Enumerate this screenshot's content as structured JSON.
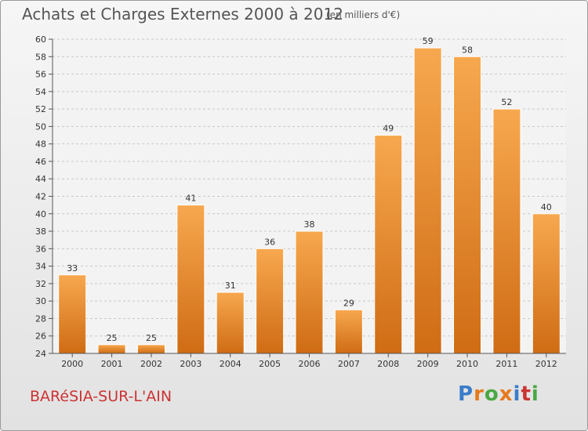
{
  "page": {
    "title": "Achats et Charges Externes 2000 à 2012",
    "unit": "(en milliers d'€)",
    "footer_name": "BARéSIA-SUR-L'AIN",
    "logo_text": "Proxiti",
    "logo_colors": [
      "#3a7dc9",
      "#e67a1e",
      "#4aa843",
      "#e67a1e",
      "#3a7dc9",
      "#cc3333",
      "#4aa843"
    ]
  },
  "chart_data": {
    "type": "bar",
    "title": "Achats et Charges Externes 2000 à 2012",
    "subtitle": "(en milliers d'€)",
    "xlabel": "",
    "ylabel": "",
    "categories": [
      "2000",
      "2001",
      "2002",
      "2003",
      "2004",
      "2005",
      "2006",
      "2007",
      "2008",
      "2009",
      "2010",
      "2011",
      "2012"
    ],
    "values": [
      33,
      25,
      25,
      41,
      31,
      36,
      38,
      29,
      49,
      59,
      58,
      52,
      40
    ],
    "ylim": [
      24,
      60
    ],
    "yticks": [
      24,
      26,
      28,
      30,
      32,
      34,
      36,
      38,
      40,
      42,
      44,
      46,
      48,
      50,
      52,
      54,
      56,
      58,
      60
    ],
    "grid": "horizontal dashed",
    "bar_color_top": "#f7a84f",
    "bar_color_bottom": "#cf6c14",
    "data_labels": true
  }
}
